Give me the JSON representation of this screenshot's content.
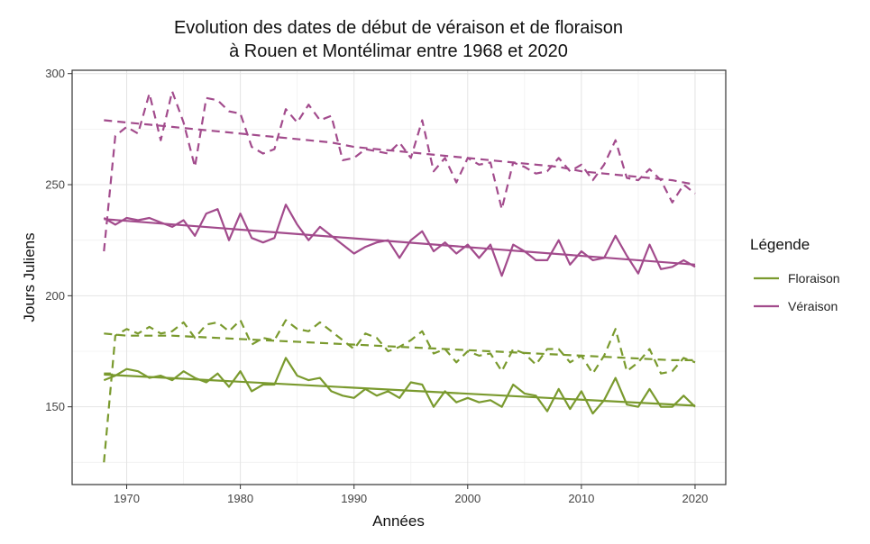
{
  "chart_data": {
    "type": "line",
    "title": [
      "Evolution des dates de début de véraison et de floraison",
      "à Rouen et Montélimar entre 1968 et 2020"
    ],
    "xlabel": "Années",
    "ylabel": "Jours Juliens",
    "xlim": [
      1965.2,
      2022.7
    ],
    "ylim": [
      115,
      301.5
    ],
    "x_ticks": [
      1970,
      1980,
      1990,
      2000,
      2010,
      2020
    ],
    "y_ticks": [
      150,
      200,
      250,
      300
    ],
    "grid": true,
    "legend": {
      "title": "Légende",
      "position": "right",
      "entries": [
        {
          "label": "Floraison",
          "color": "#7a9a2e"
        },
        {
          "label": "Véraison",
          "color": "#a24b8c"
        }
      ]
    },
    "series": [
      {
        "group": "Véraison",
        "line": "dashed",
        "color": "#a24b8c",
        "x": [
          1968,
          1969,
          1970,
          1971,
          1972,
          1973,
          1974,
          1975,
          1976,
          1977,
          1978,
          1979,
          1980,
          1981,
          1982,
          1983,
          1984,
          1985,
          1986,
          1987,
          1988,
          1989,
          1990,
          1991,
          1992,
          1993,
          1994,
          1995,
          1996,
          1997,
          1998,
          1999,
          2000,
          2001,
          2002,
          2003,
          2004,
          2005,
          2006,
          2007,
          2008,
          2009,
          2010,
          2011,
          2012,
          2013,
          2014,
          2015,
          2016,
          2017,
          2018,
          2019,
          2020
        ],
        "y": [
          220,
          272,
          276,
          273,
          291,
          270,
          292,
          278,
          258,
          289,
          288,
          283,
          282,
          267,
          264,
          266,
          284,
          278,
          286,
          279,
          281,
          261,
          262,
          266,
          265,
          264,
          269,
          262,
          279,
          256,
          262,
          251,
          262,
          259,
          260,
          239,
          260,
          258,
          255,
          256,
          262,
          256,
          259,
          252,
          259,
          270,
          253,
          252,
          257,
          252,
          242,
          250,
          246
        ]
      },
      {
        "group": "Véraison",
        "line": "dashed",
        "color": "#a24b8c",
        "x": [
          1968,
          1970,
          1972,
          1974,
          1976,
          1978,
          1980,
          1982,
          1984,
          1986,
          1988,
          1990,
          1992,
          1994,
          1996,
          1998,
          2000,
          2002,
          2004,
          2006,
          2008,
          2010,
          2012,
          2014,
          2016,
          2018,
          2020
        ],
        "y": [
          279,
          278,
          277,
          276,
          275,
          274,
          273,
          272,
          271,
          270,
          269,
          267,
          266,
          265,
          264,
          263,
          262,
          261,
          260,
          259,
          258,
          256,
          255,
          254,
          253,
          252,
          250
        ]
      },
      {
        "group": "Véraison",
        "line": "solid",
        "color": "#a24b8c",
        "x": [
          1968,
          1969,
          1970,
          1971,
          1972,
          1973,
          1974,
          1975,
          1976,
          1977,
          1978,
          1979,
          1980,
          1981,
          1982,
          1983,
          1984,
          1985,
          1986,
          1987,
          1988,
          1989,
          1990,
          1991,
          1992,
          1993,
          1994,
          1995,
          1996,
          1997,
          1998,
          1999,
          2000,
          2001,
          2002,
          2003,
          2004,
          2005,
          2006,
          2007,
          2008,
          2009,
          2010,
          2011,
          2012,
          2013,
          2014,
          2015,
          2016,
          2017,
          2018,
          2019,
          2020
        ],
        "y": [
          235,
          232,
          235,
          234,
          235,
          233,
          231,
          234,
          227,
          237,
          239,
          225,
          237,
          226,
          224,
          226,
          241,
          232,
          225,
          231,
          227,
          223,
          219,
          222,
          224,
          225,
          217,
          225,
          229,
          220,
          224,
          219,
          223,
          217,
          223,
          209,
          223,
          220,
          216,
          216,
          225,
          214,
          220,
          216,
          217,
          227,
          218,
          210,
          223,
          212,
          213,
          216,
          213
        ]
      },
      {
        "group": "Véraison",
        "line": "solid",
        "color": "#a24b8c",
        "x": [
          1968,
          2020
        ],
        "y": [
          234.5,
          214
        ]
      },
      {
        "group": "Floraison",
        "line": "dashed",
        "color": "#7a9a2e",
        "x": [
          1968,
          1969,
          1970,
          1971,
          1972,
          1973,
          1974,
          1975,
          1976,
          1977,
          1978,
          1979,
          1980,
          1981,
          1982,
          1983,
          1984,
          1985,
          1986,
          1987,
          1988,
          1989,
          1990,
          1991,
          1992,
          1993,
          1994,
          1995,
          1996,
          1997,
          1998,
          1999,
          2000,
          2001,
          2002,
          2003,
          2004,
          2005,
          2006,
          2007,
          2008,
          2009,
          2010,
          2011,
          2012,
          2013,
          2014,
          2015,
          2016,
          2017,
          2018,
          2019,
          2020
        ],
        "y": [
          125,
          182,
          185,
          183,
          186,
          183,
          184,
          188,
          181,
          187,
          188,
          184,
          189,
          178,
          181,
          180,
          189,
          185,
          184,
          188,
          184,
          180,
          176,
          183,
          181,
          175,
          177,
          180,
          184,
          174,
          176,
          170,
          175,
          173,
          174,
          166,
          176,
          174,
          169,
          176,
          176,
          170,
          173,
          165,
          173,
          185,
          166,
          170,
          176,
          165,
          166,
          172,
          170
        ]
      },
      {
        "group": "Floraison",
        "line": "dashed",
        "color": "#7a9a2e",
        "x": [
          1968,
          1970,
          1974,
          1978,
          1982,
          1986,
          1990,
          1994,
          1998,
          2002,
          2006,
          2010,
          2014,
          2018,
          2020
        ],
        "y": [
          183,
          182,
          182,
          181,
          180,
          179,
          178,
          177,
          176,
          175,
          174,
          173,
          172,
          171,
          171
        ]
      },
      {
        "group": "Floraison",
        "line": "solid",
        "color": "#7a9a2e",
        "x": [
          1968,
          1969,
          1970,
          1971,
          1972,
          1973,
          1974,
          1975,
          1976,
          1977,
          1978,
          1979,
          1980,
          1981,
          1982,
          1983,
          1984,
          1985,
          1986,
          1987,
          1988,
          1989,
          1990,
          1991,
          1992,
          1993,
          1994,
          1995,
          1996,
          1997,
          1998,
          1999,
          2000,
          2001,
          2002,
          2003,
          2004,
          2005,
          2006,
          2007,
          2008,
          2009,
          2010,
          2011,
          2012,
          2013,
          2014,
          2015,
          2016,
          2017,
          2018,
          2019,
          2020
        ],
        "y": [
          162,
          164,
          167,
          166,
          163,
          164,
          162,
          166,
          163,
          161,
          165,
          159,
          166,
          157,
          160,
          160,
          172,
          164,
          162,
          163,
          157,
          155,
          154,
          158,
          155,
          157,
          154,
          161,
          160,
          150,
          157,
          152,
          154,
          152,
          153,
          150,
          160,
          156,
          155,
          148,
          158,
          149,
          157,
          147,
          153,
          163,
          151,
          150,
          158,
          150,
          150,
          155,
          150
        ]
      },
      {
        "group": "Floraison",
        "line": "solid",
        "color": "#7a9a2e",
        "x": [
          1968,
          2020
        ],
        "y": [
          164.5,
          150.5
        ]
      },
      {
        "group": "Floraison",
        "line": "dashed",
        "color": "#7a9a2e",
        "x": [
          1968,
          1968.6
        ],
        "y": [
          165,
          165
        ]
      }
    ]
  }
}
